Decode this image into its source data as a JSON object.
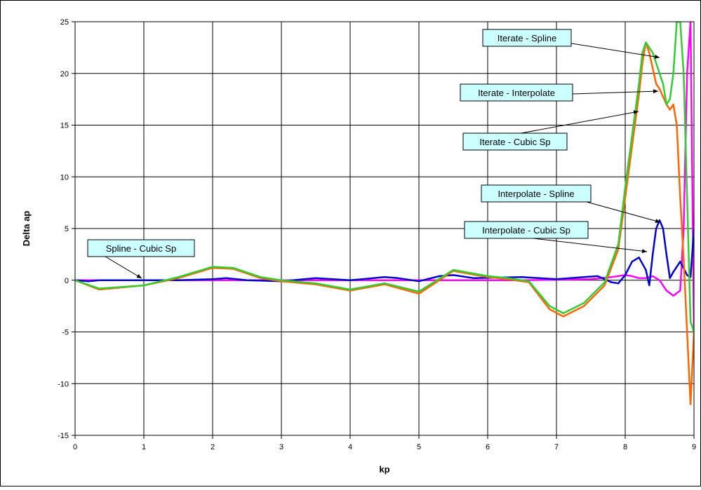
{
  "chart_data": {
    "type": "line",
    "xlabel": "kp",
    "ylabel": "Delta ap",
    "xlim": [
      0,
      9
    ],
    "ylim": [
      -15,
      25
    ],
    "x_ticks": [
      "0",
      "1",
      "2",
      "3",
      "4",
      "5",
      "6",
      "7",
      "8",
      "9"
    ],
    "y_ticks": [
      "-15",
      "-10",
      "-5",
      "0",
      "5",
      "10",
      "15",
      "20",
      "25"
    ],
    "grid": true,
    "legend": "none",
    "series": [
      {
        "name": "Spline - Cubic Sp",
        "color": "#ff00ff",
        "x": [
          0,
          0.5,
          1,
          1.5,
          2,
          2.5,
          3,
          3.5,
          4,
          4.5,
          5,
          5.5,
          6,
          6.5,
          7,
          7.5,
          7.8,
          8.0,
          8.1,
          8.2,
          8.3,
          8.4,
          8.5,
          8.6,
          8.7,
          8.8,
          8.85,
          8.9,
          8.95,
          9.0
        ],
        "y": [
          0,
          0,
          0,
          0,
          0,
          0,
          0,
          0,
          0,
          0,
          0,
          0,
          0,
          0,
          0.05,
          0.1,
          0.3,
          0.5,
          0.4,
          0.2,
          0.2,
          0.4,
          0,
          -1,
          -1.5,
          -1,
          5,
          20,
          25,
          -5
        ]
      },
      {
        "name": "Interpolate - Spline",
        "color": "#0000cc",
        "x": [
          0,
          0.2,
          0.35,
          0.6,
          1,
          1.5,
          2,
          2.2,
          2.5,
          3,
          3.5,
          4,
          4.5,
          4.7,
          5,
          5.3,
          5.5,
          5.8,
          6.5,
          7,
          7.4,
          7.6,
          7.8,
          7.9,
          8.0,
          8.1,
          8.2,
          8.3,
          8.35,
          8.4,
          8.45,
          8.5,
          8.55,
          8.6,
          8.65,
          8.7,
          8.8,
          8.9,
          8.95,
          9.0
        ],
        "y": [
          0,
          -0.1,
          0,
          0,
          0,
          0,
          0.1,
          0.2,
          0,
          -0.1,
          0.2,
          0,
          0.3,
          0.2,
          -0.1,
          0.4,
          0.5,
          0.2,
          0.3,
          0.1,
          0.3,
          0.4,
          -0.2,
          -0.3,
          0.5,
          1.8,
          2.2,
          1.0,
          -0.5,
          2.5,
          5,
          5.8,
          5.0,
          2.5,
          0.2,
          0.8,
          1.8,
          0.5,
          0.3,
          5
        ]
      },
      {
        "name": "Iterate - Interpolate",
        "color": "#ff6600",
        "x": [
          0,
          0.35,
          1,
          1.5,
          2,
          2.3,
          2.7,
          3,
          3.5,
          4,
          4.5,
          5,
          5.5,
          6,
          6.3,
          6.6,
          6.9,
          7.1,
          7.4,
          7.7,
          7.9,
          8.0,
          8.1,
          8.2,
          8.25,
          8.3,
          8.35,
          8.4,
          8.45,
          8.5,
          8.6,
          8.65,
          8.7,
          8.75,
          8.8,
          8.85,
          8.9,
          8.95,
          9.0
        ],
        "y": [
          0,
          -0.9,
          -0.5,
          0.2,
          1.2,
          1.1,
          0.2,
          -0.1,
          -0.4,
          -1,
          -0.4,
          -1.3,
          0.9,
          0.3,
          0.1,
          -0.2,
          -2.8,
          -3.5,
          -2.5,
          -0.5,
          3,
          8,
          13,
          18,
          21,
          23,
          22,
          20.5,
          19,
          18.5,
          17,
          16.5,
          17,
          15,
          8,
          2,
          -5,
          -12,
          -5
        ]
      },
      {
        "name": "Iterate - Cubic Sp",
        "color": "#33cc33",
        "x": [
          0,
          0.35,
          1,
          1.5,
          2,
          2.3,
          2.7,
          3,
          3.5,
          4,
          4.5,
          5,
          5.5,
          6,
          6.3,
          6.6,
          6.9,
          7.1,
          7.4,
          7.7,
          7.9,
          8.0,
          8.1,
          8.2,
          8.25,
          8.3,
          8.35,
          8.4,
          8.45,
          8.5,
          8.55,
          8.6,
          8.65,
          8.7,
          8.75,
          8.8,
          8.85,
          8.9,
          8.95,
          9.0
        ],
        "y": [
          0,
          -0.8,
          -0.5,
          0.3,
          1.3,
          1.2,
          0.3,
          0,
          -0.3,
          -0.9,
          -0.3,
          -1.1,
          1.0,
          0.4,
          0.2,
          -0.1,
          -2.5,
          -3.2,
          -2.2,
          -0.2,
          3.5,
          9,
          14,
          19,
          22,
          23,
          22.5,
          22,
          21,
          20,
          19,
          17,
          17.5,
          20,
          25,
          25,
          20,
          8,
          -4,
          -5
        ]
      }
    ],
    "annotations": [
      {
        "text": "Iterate - Spline"
      },
      {
        "text": "Iterate - Interpolate"
      },
      {
        "text": "Iterate - Cubic Sp"
      },
      {
        "text": "Interpolate - Spline"
      },
      {
        "text": "Interpolate - Cubic Sp"
      },
      {
        "text": "Spline - Cubic Sp"
      }
    ]
  }
}
